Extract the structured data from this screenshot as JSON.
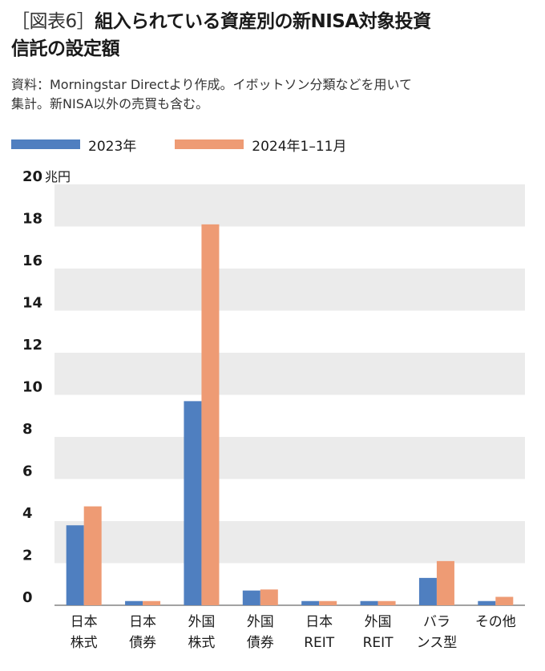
{
  "figure_tag": "［図表6］",
  "title_line1": "組入られている資産別の新NISA対象投資",
  "title_line2": "信託の設定額",
  "source_line1": "資料：Morningstar Directより作成。イボットソン分類などを用いて",
  "source_line2": "集計。新NISA以外の売買も含む。",
  "colors": {
    "series1": "#4f7fc0",
    "series2": "#ee9b74",
    "band": "#ebebeb"
  },
  "chart_data": {
    "type": "bar",
    "unit_label": "兆円",
    "ylim": [
      0,
      20
    ],
    "yticks": [
      0,
      2,
      4,
      6,
      8,
      10,
      12,
      14,
      16,
      18,
      20
    ],
    "categories": [
      [
        "日本",
        "株式"
      ],
      [
        "日本",
        "債券"
      ],
      [
        "外国",
        "株式"
      ],
      [
        "外国",
        "債券"
      ],
      [
        "日本",
        "REIT"
      ],
      [
        "外国",
        "REIT"
      ],
      [
        "バラ",
        "ンス型"
      ],
      [
        "その他"
      ]
    ],
    "series": [
      {
        "name": "2023年",
        "values": [
          3.8,
          0.2,
          9.7,
          0.7,
          0.2,
          0.2,
          1.3,
          0.2
        ]
      },
      {
        "name": "2024年1–11月",
        "values": [
          4.7,
          0.2,
          18.1,
          0.75,
          0.2,
          0.2,
          2.1,
          0.4
        ]
      }
    ],
    "grid": "alternating bands",
    "legend_position": "top-left"
  }
}
